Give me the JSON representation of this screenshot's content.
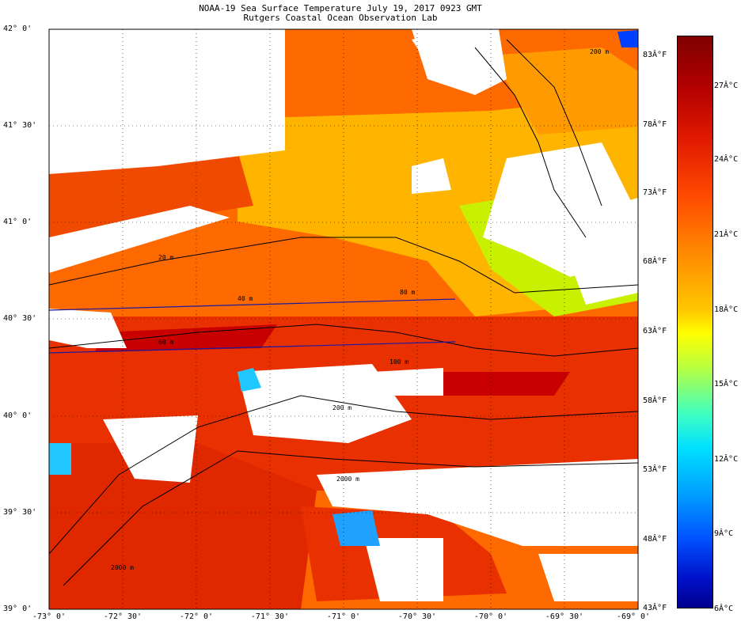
{
  "title_line1": "NOAA-19 Sea Surface Temperature July 19, 2017 0923 GMT",
  "title_line2": "Rutgers Coastal Ocean Observation Lab",
  "lat_labels": [
    "42° 0'",
    "41° 30'",
    "41° 0'",
    "40° 30'",
    "40° 0'",
    "39° 30'",
    "39° 0'"
  ],
  "lon_labels": [
    "-73° 0'",
    "-72° 30'",
    "-72° 0'",
    "-71° 30'",
    "-71° 0'",
    "-70° 30'",
    "-70° 0'",
    "-69° 30'",
    "-69° 0'"
  ],
  "colorbar": {
    "fahrenheit_labels": [
      "83Â°F",
      "78Â°F",
      "73Â°F",
      "68Â°F",
      "63Â°F",
      "58Â°F",
      "53Â°F",
      "48Â°F",
      "43Â°F"
    ],
    "celsius_labels": [
      "27Â°C",
      "24Â°C",
      "21Â°C",
      "18Â°C",
      "15Â°C",
      "12Â°C",
      "9Â°C",
      "6Â°C"
    ],
    "colors": [
      "#7f0000",
      "#e01a00",
      "#ff8a00",
      "#ffff00",
      "#40ffc0",
      "#00a0ff",
      "#0010c8",
      "#00008f"
    ]
  },
  "isobath_labels": [
    "20 m",
    "40 m",
    "60 m",
    "80 m",
    "100 m",
    "200 m",
    "2000 m",
    "2000 m",
    "200 m"
  ],
  "map_colors": {
    "land_cloud": "#ffffff",
    "warm": "#e83000",
    "hot": "#c80000",
    "mid": "#ff7800",
    "shelf": "#ffb400",
    "cool": "#c8f000",
    "cold": "#20c8ff",
    "contour": "#000000",
    "transect": "#1a1aa0"
  }
}
